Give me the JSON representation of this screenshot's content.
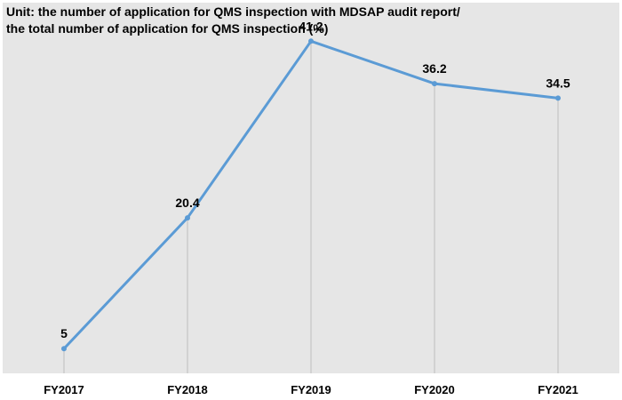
{
  "chart_data": {
    "type": "line",
    "title_lines": [
      "Unit: the number of application for QMS inspection with MDSAP audit report/",
      "the total number of application for QMS inspection (%)"
    ],
    "categories": [
      "FY2017",
      "FY2018",
      "FY2019",
      "FY2020",
      "FY2021"
    ],
    "series": [
      {
        "values": [
          5,
          20.4,
          41.2,
          36.2,
          34.5
        ],
        "data_labels": [
          "5",
          "20.4",
          "41.2",
          "36.2",
          "34.5"
        ],
        "color": "#5b9bd5"
      }
    ],
    "ylim": [
      0,
      45
    ],
    "grid": "vertical-drop-lines",
    "legend": "none",
    "plot_background": "#e6e6e6"
  }
}
